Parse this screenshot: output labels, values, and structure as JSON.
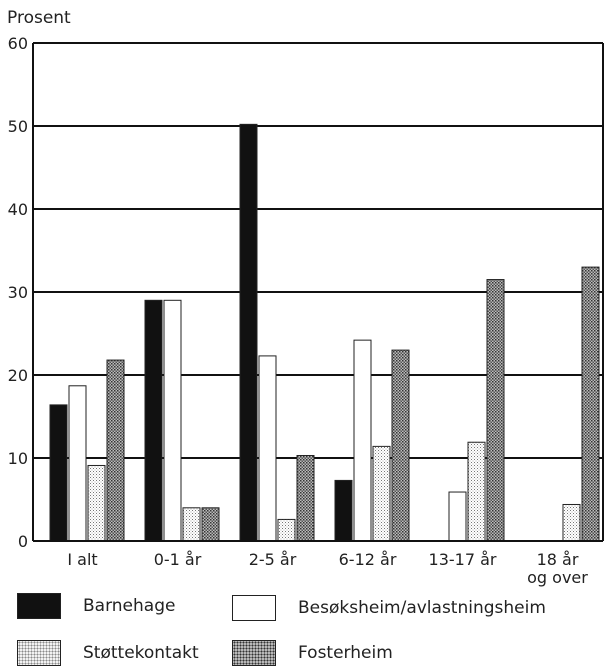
{
  "chart_data": {
    "type": "bar",
    "ylabel": "Prosent",
    "ylim": [
      0,
      60
    ],
    "yticks": [
      0,
      10,
      20,
      30,
      40,
      50,
      60
    ],
    "grid": true,
    "categories": [
      "I alt",
      "0-1 år",
      "2-5 år",
      "6-12 år",
      "13-17 år",
      "18 år og over"
    ],
    "category_lines": [
      [
        "I alt"
      ],
      [
        "0-1 år"
      ],
      [
        "2-5 år"
      ],
      [
        "6-12 år"
      ],
      [
        "13-17 år"
      ],
      [
        "18 år",
        "og over"
      ]
    ],
    "series": [
      {
        "name": "Barnehage",
        "color": "#111111",
        "pattern": "solid",
        "values": [
          16.4,
          29,
          50.2,
          7.3,
          0,
          0
        ]
      },
      {
        "name": "Besøksheim/avlastningsheim",
        "color": "#ffffff",
        "pattern": "white",
        "values": [
          18.7,
          29,
          22.3,
          24.2,
          5.9,
          0
        ]
      },
      {
        "name": "Støttekontakt",
        "color": "#dcdcdc",
        "pattern": "light-dots",
        "values": [
          9.1,
          4,
          2.6,
          11.4,
          11.9,
          4.4
        ]
      },
      {
        "name": "Fosterheim",
        "color": "#9a9a9a",
        "pattern": "dense-dots",
        "values": [
          21.8,
          4,
          10.3,
          23,
          31.5,
          33
        ]
      }
    ],
    "legend_position": "bottom"
  }
}
